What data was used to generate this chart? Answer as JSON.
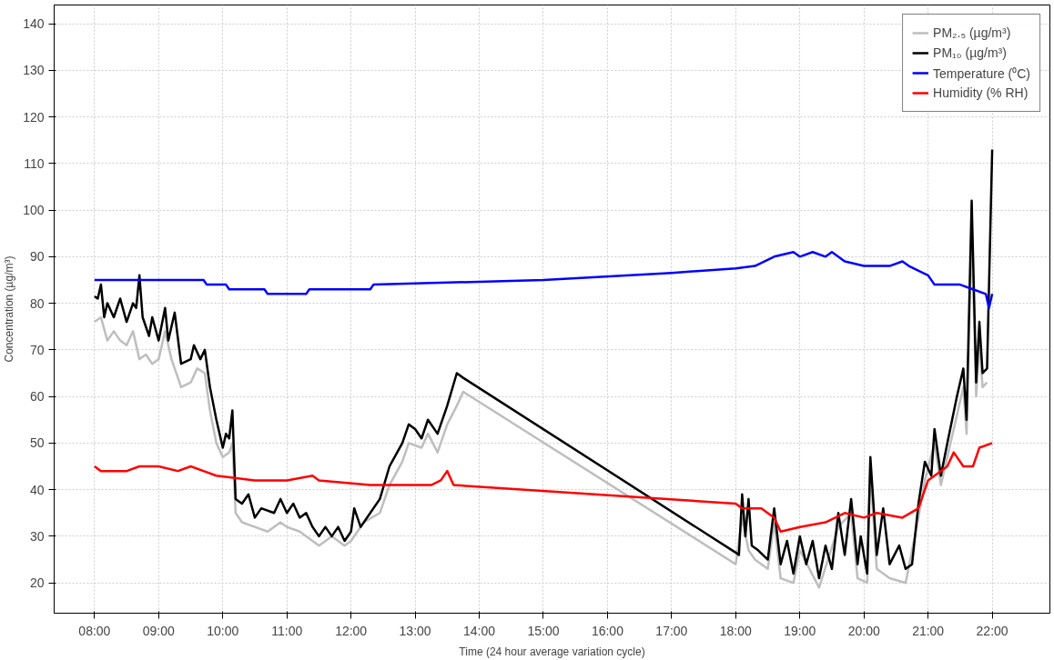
{
  "chart_data": {
    "type": "line",
    "xlabel": "Time (24 hour average variation cycle)",
    "ylabel": "Concentration (µg/m³)",
    "xlim": [
      7.37,
      22.9
    ],
    "ylim": [
      13.5,
      144
    ],
    "xticks": [
      {
        "value": 8,
        "label": "08:00"
      },
      {
        "value": 9,
        "label": "09:00"
      },
      {
        "value": 10,
        "label": "10:00"
      },
      {
        "value": 11,
        "label": "11:00"
      },
      {
        "value": 12,
        "label": "12:00"
      },
      {
        "value": 13,
        "label": "13:00"
      },
      {
        "value": 14,
        "label": "14:00"
      },
      {
        "value": 15,
        "label": "15:00"
      },
      {
        "value": 16,
        "label": "16:00"
      },
      {
        "value": 17,
        "label": "17:00"
      },
      {
        "value": 18,
        "label": "18:00"
      },
      {
        "value": 19,
        "label": "19:00"
      },
      {
        "value": 20,
        "label": "20:00"
      },
      {
        "value": 21,
        "label": "21:00"
      },
      {
        "value": 22,
        "label": "22:00"
      }
    ],
    "yticks": [
      20,
      30,
      40,
      50,
      60,
      70,
      80,
      90,
      100,
      110,
      120,
      130,
      140
    ],
    "grid": true,
    "legend": "top right",
    "line_style": "solid",
    "marker": "none",
    "series": [
      {
        "name": "PM₂.₅ (µg/m³)",
        "color": "#bebebe",
        "x": [
          8.0,
          8.1,
          8.2,
          8.3,
          8.4,
          8.5,
          8.6,
          8.7,
          8.8,
          8.9,
          9.0,
          9.1,
          9.2,
          9.35,
          9.5,
          9.6,
          9.72,
          9.8,
          9.9,
          10.0,
          10.1,
          10.15,
          10.2,
          10.3,
          10.5,
          10.7,
          10.9,
          11.0,
          11.2,
          11.4,
          11.5,
          11.7,
          11.9,
          12.0,
          12.2,
          12.45,
          12.6,
          12.8,
          12.9,
          13.1,
          13.2,
          13.35,
          13.5,
          13.65,
          13.75,
          18.0,
          18.1,
          18.2,
          18.3,
          18.5,
          18.6,
          18.7,
          18.9,
          19.0,
          19.3,
          19.6,
          19.8,
          19.9,
          20.05,
          20.1,
          20.2,
          20.4,
          20.65,
          20.85,
          20.95,
          21.1,
          21.2,
          21.3,
          21.45,
          21.55,
          21.6,
          21.68,
          21.75,
          21.8,
          21.85,
          21.92
        ],
        "values": [
          76,
          77,
          72,
          74,
          72,
          71,
          74,
          68,
          69,
          67,
          68,
          74,
          68,
          62,
          63,
          66,
          65,
          57,
          50,
          47,
          48,
          50,
          35,
          33,
          32,
          31,
          33,
          32,
          31,
          29,
          28,
          30,
          28,
          29,
          33,
          35,
          41,
          46,
          50,
          49,
          52,
          48,
          54,
          58,
          61,
          24,
          34,
          27,
          25,
          23,
          33,
          21,
          20,
          27,
          19,
          32,
          35,
          21,
          20,
          44,
          23,
          21,
          20,
          34,
          42,
          50,
          41,
          47,
          56,
          62,
          52,
          96,
          60,
          72,
          62,
          63
        ]
      },
      {
        "name": "PM₁₀ (µg/m³)",
        "color": "#000000",
        "x": [
          8.0,
          8.05,
          8.1,
          8.15,
          8.2,
          8.3,
          8.4,
          8.5,
          8.6,
          8.65,
          8.7,
          8.75,
          8.85,
          8.9,
          9.0,
          9.1,
          9.15,
          9.25,
          9.35,
          9.5,
          9.55,
          9.65,
          9.72,
          9.8,
          9.9,
          9.95,
          10.0,
          10.05,
          10.1,
          10.15,
          10.2,
          10.3,
          10.4,
          10.5,
          10.6,
          10.8,
          10.9,
          11.0,
          11.1,
          11.2,
          11.3,
          11.4,
          11.5,
          11.6,
          11.7,
          11.8,
          11.9,
          12.0,
          12.05,
          12.15,
          12.3,
          12.45,
          12.6,
          12.8,
          12.9,
          13.0,
          13.1,
          13.2,
          13.35,
          13.5,
          13.65,
          13.75,
          18.0,
          18.05,
          18.1,
          18.15,
          18.2,
          18.25,
          18.35,
          18.5,
          18.6,
          18.7,
          18.8,
          18.9,
          19.0,
          19.1,
          19.2,
          19.3,
          19.4,
          19.5,
          19.6,
          19.7,
          19.8,
          19.9,
          19.95,
          20.05,
          20.1,
          20.2,
          20.3,
          20.4,
          20.55,
          20.65,
          20.75,
          20.85,
          20.95,
          21.05,
          21.1,
          21.2,
          21.3,
          21.45,
          21.55,
          21.6,
          21.68,
          21.75,
          21.8,
          21.85,
          21.92,
          22.0
        ],
        "values": [
          81.5,
          81,
          84,
          77,
          80,
          77,
          81,
          76,
          80,
          79,
          86,
          77,
          73,
          77,
          72,
          79,
          72,
          78,
          67,
          68,
          71,
          68,
          70,
          62,
          55,
          52,
          49,
          52,
          51,
          57,
          38,
          37,
          39,
          34,
          36,
          35,
          38,
          35,
          37,
          34,
          35,
          32,
          30,
          32,
          30,
          32,
          29,
          31,
          36,
          32,
          35,
          38,
          45,
          50,
          54,
          53,
          51,
          55,
          52,
          58,
          65,
          64,
          26.5,
          26,
          39,
          30,
          38,
          28,
          27,
          25,
          36,
          24,
          29,
          22,
          30,
          24,
          29,
          21,
          28,
          23,
          35,
          26,
          38,
          24,
          30,
          22,
          47,
          26,
          36,
          24,
          28,
          23,
          24,
          37,
          46,
          43,
          53,
          43,
          50,
          60,
          66,
          55,
          102,
          63,
          76,
          65,
          66,
          113
        ]
      },
      {
        "name": "Temperature (⁰C)",
        "color": "#0000ff",
        "x": [
          8.0,
          9.7,
          9.75,
          10.05,
          10.1,
          10.65,
          10.7,
          11.3,
          11.35,
          12.3,
          12.35,
          15.0,
          17.0,
          18.0,
          18.3,
          18.6,
          18.9,
          19.0,
          19.2,
          19.4,
          19.5,
          19.7,
          20.0,
          20.4,
          20.6,
          20.7,
          21.0,
          21.1,
          21.5,
          21.7,
          21.9,
          21.95,
          22.0
        ],
        "values": [
          85,
          85,
          84,
          84,
          83,
          83,
          82,
          82,
          83,
          83,
          84,
          85,
          86.5,
          87.5,
          88,
          90,
          91,
          90,
          91,
          90,
          91,
          89,
          88,
          88,
          89,
          88,
          86,
          84,
          84,
          83,
          82,
          79,
          82
        ]
      },
      {
        "name": "Humidity (% RH)",
        "color": "#ff0000",
        "x": [
          8.0,
          8.1,
          8.5,
          8.7,
          9.0,
          9.3,
          9.5,
          9.7,
          9.9,
          10.5,
          11.0,
          11.4,
          11.5,
          12.3,
          12.6,
          13.25,
          13.4,
          13.5,
          13.6,
          18.0,
          18.1,
          18.4,
          18.6,
          18.7,
          19.0,
          19.4,
          19.7,
          20.0,
          20.2,
          20.6,
          20.85,
          21.0,
          21.3,
          21.4,
          21.55,
          21.7,
          21.8,
          22.0
        ],
        "values": [
          45,
          44,
          44,
          45,
          45,
          44,
          45,
          44,
          43,
          42,
          42,
          43,
          42,
          41,
          41,
          41,
          42,
          44,
          41,
          37,
          36,
          36,
          34,
          31,
          32,
          33,
          35,
          34,
          35,
          34,
          36,
          42,
          45,
          48,
          45,
          45,
          49,
          50
        ]
      }
    ]
  }
}
